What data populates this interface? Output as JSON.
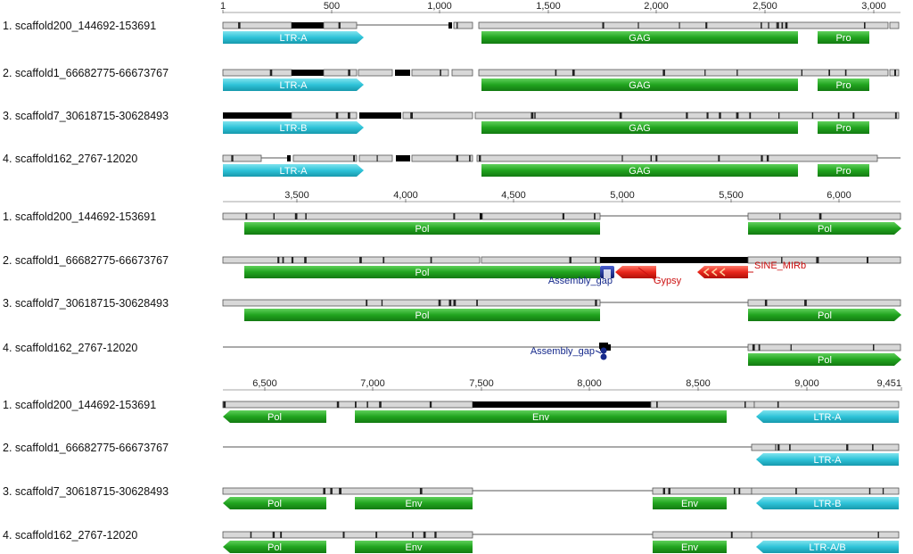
{
  "track_names": [
    "1. scaffold200_144692-153691",
    "2. scaffold1_66682775-66673767",
    "3. scaffold7_30618715-30628493",
    "4. scaffold162_2767-12020"
  ],
  "panels": [
    {
      "ruler": [
        "1",
        "500",
        "1,000",
        "1,500",
        "2,000",
        "2,500",
        "3,000"
      ],
      "features": [
        [
          {
            "label": "LTR-A",
            "kind": "ltr"
          },
          {
            "label": "GAG",
            "kind": "cds"
          },
          {
            "label": "Pro",
            "kind": "cds"
          }
        ],
        [
          {
            "label": "LTR-A",
            "kind": "ltr"
          },
          {
            "label": "GAG",
            "kind": "cds"
          },
          {
            "label": "Pro",
            "kind": "cds"
          }
        ],
        [
          {
            "label": "LTR-B",
            "kind": "ltr"
          },
          {
            "label": "GAG",
            "kind": "cds"
          },
          {
            "label": "Pro",
            "kind": "cds"
          }
        ],
        [
          {
            "label": "LTR-A",
            "kind": "ltr"
          },
          {
            "label": "GAG",
            "kind": "cds"
          },
          {
            "label": "Pro",
            "kind": "cds"
          }
        ]
      ]
    },
    {
      "ruler": [
        "3,500",
        "4,000",
        "4,500",
        "5,000",
        "5,500",
        "6,000"
      ],
      "features": [
        [
          {
            "label": "Pol",
            "kind": "cds"
          },
          {
            "label": "Pol",
            "kind": "cds"
          }
        ],
        [
          {
            "label": "Pol",
            "kind": "cds"
          },
          {
            "label": "Assembly_gap",
            "kind": "gap"
          },
          {
            "label": "Gypsy",
            "kind": "repeat"
          },
          {
            "label": "SINE_MIRb",
            "kind": "repeat"
          }
        ],
        [
          {
            "label": "Pol",
            "kind": "cds"
          },
          {
            "label": "Pol",
            "kind": "cds"
          }
        ],
        [
          {
            "label": "Assembly_gap",
            "kind": "gap"
          },
          {
            "label": "Pol",
            "kind": "cds"
          }
        ]
      ]
    },
    {
      "ruler": [
        "6,500",
        "7,000",
        "7,500",
        "8,000",
        "8,500",
        "9,000",
        "9,451"
      ],
      "features": [
        [
          {
            "label": "Pol",
            "kind": "cds"
          },
          {
            "label": "Env",
            "kind": "cds"
          },
          {
            "label": "LTR-A",
            "kind": "ltr"
          }
        ],
        [
          {
            "label": "LTR-A",
            "kind": "ltr"
          }
        ],
        [
          {
            "label": "Pol",
            "kind": "cds"
          },
          {
            "label": "Env",
            "kind": "cds"
          },
          {
            "label": "Env",
            "kind": "cds"
          },
          {
            "label": "LTR-B",
            "kind": "ltr"
          }
        ],
        [
          {
            "label": "Pol",
            "kind": "cds"
          },
          {
            "label": "Env",
            "kind": "cds"
          },
          {
            "label": "Env",
            "kind": "cds"
          },
          {
            "label": "LTR-A/B",
            "kind": "ltr"
          }
        ]
      ]
    }
  ],
  "colors": {
    "ltr": "#2ec3d8",
    "cds": "#21a41f",
    "repeat": "#e8261b",
    "gap": "#162a8c",
    "repeat_text": "#cc1010",
    "gap_text": "#162a8c",
    "seq_fill": "#d8d8d8",
    "seq_dark": "#000000"
  }
}
